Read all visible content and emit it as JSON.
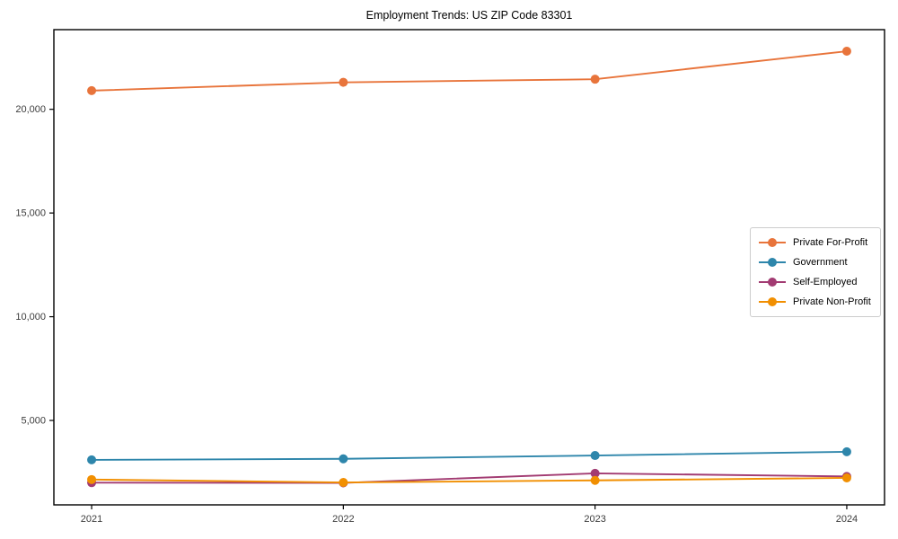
{
  "title": "Employment Trends: US ZIP Code 83301",
  "chart_data": {
    "type": "line",
    "title": "Employment Trends: US ZIP Code 83301",
    "xlabel": "",
    "ylabel": "",
    "x": [
      2021,
      2022,
      2023,
      2024
    ],
    "x_tick_labels": [
      "2021",
      "2022",
      "2023",
      "2024"
    ],
    "y_ticks": [
      5000,
      10000,
      15000,
      20000
    ],
    "y_tick_labels": [
      "5,000",
      "10,000",
      "15,000",
      "20,000"
    ],
    "xlim": [
      2020.85,
      2024.15
    ],
    "ylim": [
      930,
      23840
    ],
    "grid": false,
    "legend_position": "center-right",
    "series": [
      {
        "name": "Private For-Profit",
        "color": "#E8743B",
        "values": [
          20900,
          21300,
          21450,
          22800
        ]
      },
      {
        "name": "Government",
        "color": "#2E86AB",
        "values": [
          3100,
          3150,
          3310,
          3490
        ]
      },
      {
        "name": "Self-Employed",
        "color": "#A23B72",
        "values": [
          2000,
          1990,
          2450,
          2300
        ]
      },
      {
        "name": "Private Non-Profit",
        "color": "#F18F01",
        "values": [
          2150,
          2010,
          2110,
          2230
        ]
      }
    ]
  }
}
